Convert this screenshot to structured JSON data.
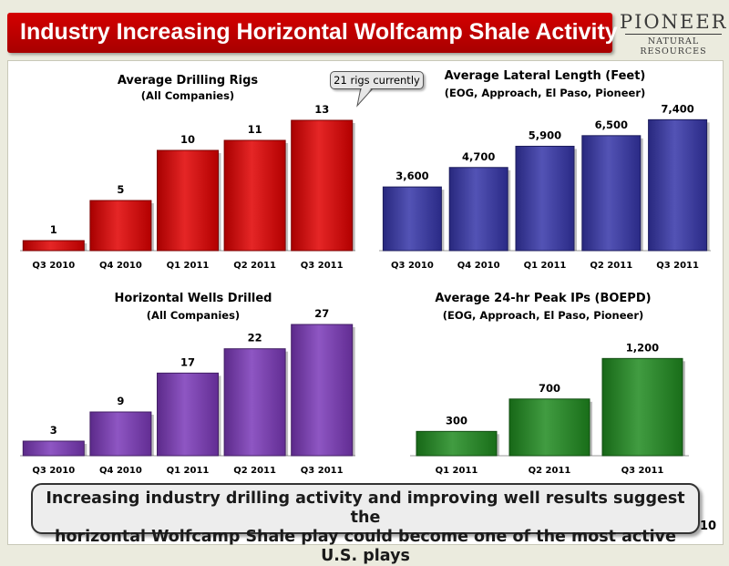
{
  "header": {
    "title": "Industry Increasing Horizontal Wolfcamp Shale Activity",
    "logo_main": "PIONEER",
    "logo_sub": "NATURAL RESOURCES"
  },
  "callout": {
    "text": "21 rigs currently"
  },
  "summary": {
    "line1": "Increasing industry drilling activity and improving well results suggest the",
    "line2": "horizontal Wolfcamp Shale play could become one of the most active U.S. plays"
  },
  "page_number": "10",
  "chart_data": [
    {
      "type": "bar",
      "title": "Average Drilling Rigs",
      "subtitle": "(All Companies)",
      "categories": [
        "Q3 2010",
        "Q4 2010",
        "Q1 2011",
        "Q2 2011",
        "Q3 2011"
      ],
      "values": [
        1,
        5,
        10,
        11,
        13
      ],
      "labels": [
        "1",
        "5",
        "10",
        "11",
        "13"
      ],
      "color": "#e00000",
      "ylim": [
        0,
        15
      ]
    },
    {
      "type": "bar",
      "title": "Average Lateral Length (Feet)",
      "subtitle": "(EOG, Approach, El Paso, Pioneer)",
      "categories": [
        "Q3 2010",
        "Q4 2010",
        "Q1 2011",
        "Q2 2011",
        "Q3 2011"
      ],
      "values": [
        3600,
        4700,
        5900,
        6500,
        7400
      ],
      "labels": [
        "3,600",
        "4,700",
        "5,900",
        "6,500",
        "7,400"
      ],
      "color": "#3535a8",
      "ylim": [
        0,
        8500
      ]
    },
    {
      "type": "bar",
      "title": "Horizontal Wells Drilled",
      "subtitle": "(All Companies)",
      "categories": [
        "Q3 2010",
        "Q4 2010",
        "Q1 2011",
        "Q2 2011",
        "Q3 2011"
      ],
      "values": [
        3,
        9,
        17,
        22,
        27
      ],
      "labels": [
        "3",
        "9",
        "17",
        "22",
        "27"
      ],
      "color": "#7a38b8",
      "ylim": [
        0,
        30
      ]
    },
    {
      "type": "bar",
      "title": "Average 24-hr Peak IPs (BOEPD)",
      "subtitle": "(EOG, Approach, El Paso, Pioneer)",
      "categories": [
        "Q1 2011",
        "Q2 2011",
        "Q3 2011"
      ],
      "values": [
        300,
        700,
        1200
      ],
      "labels": [
        "300",
        "700",
        "1,200"
      ],
      "color": "#1f8a1f",
      "ylim": [
        0,
        1800
      ]
    }
  ]
}
